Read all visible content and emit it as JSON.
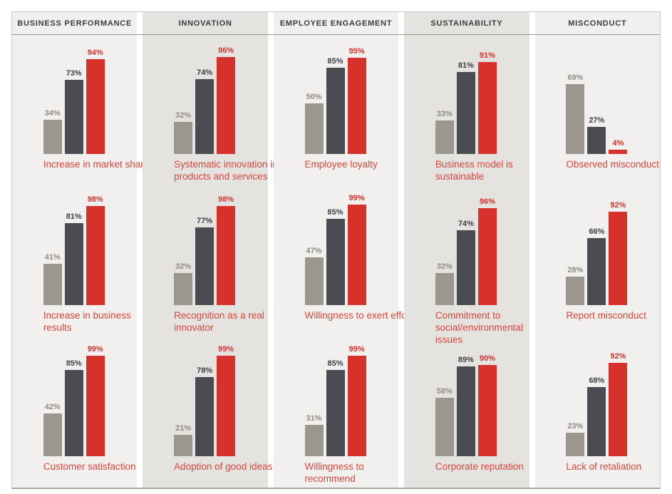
{
  "colors": {
    "bar_low": "#9b978e",
    "bar_mid": "#4b4b54",
    "bar_high": "#d7312c",
    "label_low": "#8e8b83",
    "label_mid": "#3e3e46",
    "label_high": "#d7312c",
    "caption": "#da463c",
    "col_bg_light": "#f1f0ee",
    "col_bg_dark": "#e4e3e0",
    "header_text": "#3b3b41",
    "header_rule": "#94928c",
    "frame_border": "#c9c7c3",
    "frame_border_bottom": "#a9a7a3"
  },
  "chart_data": {
    "type": "bar",
    "unit": "%",
    "value_range": [
      0,
      100
    ],
    "series_names": [
      "low-group",
      "mid-group",
      "high-group"
    ],
    "legend": "none",
    "grid": false,
    "columns": [
      {
        "header": "BUSINESS PERFORMANCE",
        "charts": [
          {
            "caption": "Increase in market share",
            "values": [
              34,
              73,
              94
            ]
          },
          {
            "caption": "Increase in business results",
            "values": [
              41,
              81,
              98
            ]
          },
          {
            "caption": "Customer satisfaction",
            "values": [
              42,
              85,
              99
            ]
          }
        ]
      },
      {
        "header": "INNOVATION",
        "charts": [
          {
            "caption": "Systematic innovation in products and services",
            "values": [
              32,
              74,
              96
            ]
          },
          {
            "caption": "Recognition as a real innovator",
            "values": [
              32,
              77,
              98
            ]
          },
          {
            "caption": "Adoption of good ideas",
            "values": [
              21,
              78,
              99
            ]
          }
        ]
      },
      {
        "header": "EMPLOYEE ENGAGEMENT",
        "charts": [
          {
            "caption": "Employee loyalty",
            "values": [
              50,
              85,
              95
            ]
          },
          {
            "caption": "Willingness to exert effort",
            "values": [
              47,
              85,
              99
            ]
          },
          {
            "caption": "Willingness to recommend",
            "values": [
              31,
              85,
              99
            ]
          }
        ]
      },
      {
        "header": "SUSTAINABILITY",
        "charts": [
          {
            "caption": "Business model is sustainable",
            "values": [
              33,
              81,
              91
            ]
          },
          {
            "caption": "Commitment to social/environmental issues",
            "values": [
              32,
              74,
              96
            ]
          },
          {
            "caption": "Corporate reputation",
            "values": [
              58,
              89,
              90
            ]
          }
        ]
      },
      {
        "header": "MISCONDUCT",
        "charts": [
          {
            "caption": "Observed misconduct",
            "values": [
              69,
              27,
              4
            ]
          },
          {
            "caption": "Report misconduct",
            "values": [
              28,
              66,
              92
            ]
          },
          {
            "caption": "Lack of retaliation",
            "values": [
              23,
              68,
              92
            ]
          }
        ]
      }
    ]
  }
}
